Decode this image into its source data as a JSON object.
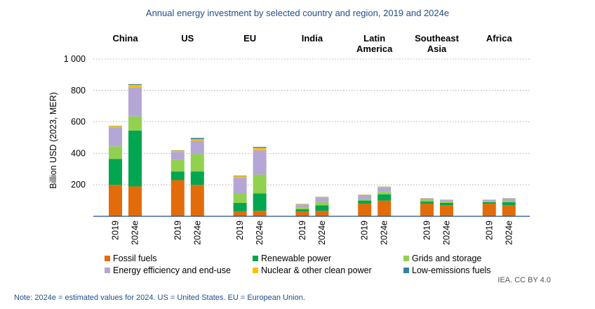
{
  "chart_data": {
    "type": "bar",
    "stacked": true,
    "title": "Annual energy investment by selected country and region, 2019 and 2024e",
    "ylabel": "Billion USD (2023, MER)",
    "xlabel": "",
    "ylim": [
      0,
      1000
    ],
    "yticks": [
      {
        "value": 200,
        "label": "200"
      },
      {
        "value": 400,
        "label": "400"
      },
      {
        "value": 600,
        "label": "600"
      },
      {
        "value": 800,
        "label": "800"
      },
      {
        "value": 1000,
        "label": "1 000"
      }
    ],
    "grid": true,
    "legend_position": "bottom",
    "groups": [
      {
        "name": "China",
        "categories": [
          "2019",
          "2024e"
        ]
      },
      {
        "name": "US",
        "categories": [
          "2019",
          "2024e"
        ]
      },
      {
        "name": "EU",
        "categories": [
          "2019",
          "2024e"
        ]
      },
      {
        "name": "India",
        "categories": [
          "2019",
          "2024e"
        ]
      },
      {
        "name": "Latin America",
        "categories": [
          "2019",
          "2024e"
        ]
      },
      {
        "name": "Southeast Asia",
        "categories": [
          "2019",
          "2024e"
        ]
      },
      {
        "name": "Africa",
        "categories": [
          "2019",
          "2024e"
        ]
      }
    ],
    "series": [
      {
        "name": "Fossil fuels",
        "color": "#e36c0a",
        "values": [
          200,
          190,
          230,
          200,
          30,
          35,
          30,
          35,
          80,
          100,
          80,
          70,
          80,
          70
        ]
      },
      {
        "name": "Renewable power",
        "color": "#00a650",
        "values": [
          165,
          355,
          55,
          85,
          55,
          110,
          15,
          35,
          20,
          40,
          15,
          15,
          10,
          20
        ]
      },
      {
        "name": "Grids and storage",
        "color": "#92d050",
        "values": [
          80,
          90,
          75,
          110,
          60,
          120,
          10,
          20,
          10,
          15,
          10,
          10,
          5,
          10
        ]
      },
      {
        "name": "Energy efficiency and end-use",
        "color": "#b4a7d6",
        "values": [
          120,
          185,
          50,
          85,
          100,
          155,
          20,
          30,
          25,
          30,
          10,
          10,
          10,
          15
        ]
      },
      {
        "name": "Nuclear & other clean power",
        "color": "#ffc000",
        "values": [
          8,
          15,
          8,
          10,
          10,
          15,
          3,
          3,
          2,
          3,
          1,
          1,
          1,
          1
        ]
      },
      {
        "name": "Low-emissions fuels",
        "color": "#31849b",
        "values": [
          2,
          5,
          2,
          8,
          3,
          6,
          1,
          1,
          1,
          1,
          0,
          0,
          0,
          0
        ]
      }
    ],
    "credit": "IEA. CC BY 4.0",
    "note": "Note: 2024e = estimated values for 2024. US = United States. EU = European Union."
  }
}
